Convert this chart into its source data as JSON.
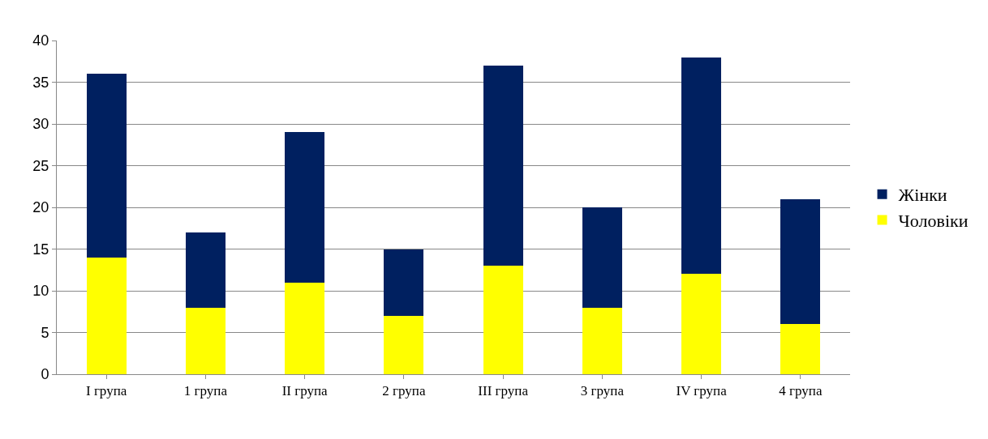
{
  "chart_data": {
    "type": "bar",
    "stacked": true,
    "categories": [
      "I група",
      "1 група",
      "II група",
      "2 група",
      "III група",
      "3 група",
      "IV група",
      "4 група"
    ],
    "series": [
      {
        "name": "Чоловіки",
        "color": "#ffff00",
        "values": [
          14,
          8,
          11,
          7,
          13,
          8,
          12,
          6
        ]
      },
      {
        "name": "Жінки",
        "color": "#002060",
        "values": [
          22,
          9,
          18,
          8,
          24,
          12,
          26,
          15
        ]
      }
    ],
    "ylim": [
      0,
      40
    ],
    "yticks": [
      0,
      5,
      10,
      15,
      20,
      25,
      30,
      35,
      40
    ],
    "grid": "y",
    "legend": "right"
  }
}
